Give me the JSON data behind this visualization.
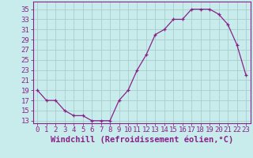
{
  "x": [
    0,
    1,
    2,
    3,
    4,
    5,
    6,
    7,
    8,
    9,
    10,
    11,
    12,
    13,
    14,
    15,
    16,
    17,
    18,
    19,
    20,
    21,
    22,
    23
  ],
  "y": [
    19,
    17,
    17,
    15,
    14,
    14,
    13,
    13,
    13,
    17,
    19,
    23,
    26,
    30,
    31,
    33,
    33,
    35,
    35,
    35,
    34,
    32,
    28,
    22
  ],
  "line_color": "#882288",
  "marker": "+",
  "bg_color": "#c8ecec",
  "grid_color": "#aacccc",
  "xlabel": "Windchill (Refroidissement éolien,°C)",
  "ylabel_ticks": [
    13,
    15,
    17,
    19,
    21,
    23,
    25,
    27,
    29,
    31,
    33,
    35
  ],
  "xlim": [
    -0.5,
    23.5
  ],
  "ylim": [
    12.5,
    36.5
  ],
  "xticks": [
    0,
    1,
    2,
    3,
    4,
    5,
    6,
    7,
    8,
    9,
    10,
    11,
    12,
    13,
    14,
    15,
    16,
    17,
    18,
    19,
    20,
    21,
    22,
    23
  ],
  "xlabel_fontsize": 7.5,
  "tick_fontsize": 6.5
}
